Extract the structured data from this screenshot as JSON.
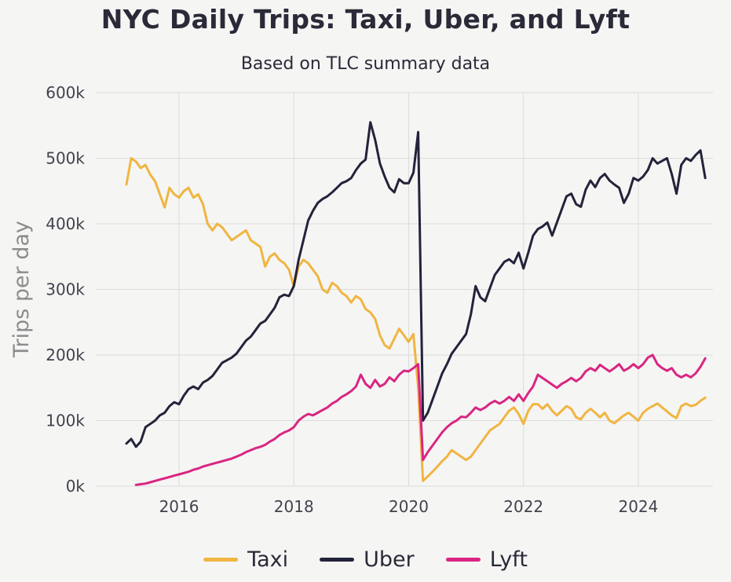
{
  "theme": {
    "bg": "#f5f5f4",
    "grid": "#dcdcdc",
    "tick": "#42424d",
    "text": "#2a2a38",
    "muted": "#8c8c8c"
  },
  "chart_data": {
    "type": "line",
    "title": "NYC Daily Trips: Taxi, Uber, and Lyft",
    "subtitle": "Based on TLC summary data",
    "ylabel": "Trips per day",
    "xlabel": "",
    "unit": "thousands of trips per day",
    "grid": true,
    "legend_position": "bottom",
    "xlim": [
      2014.55,
      2025.3
    ],
    "ylim": [
      0,
      600
    ],
    "x_ticks": [
      2016,
      2018,
      2020,
      2022,
      2024
    ],
    "y_ticks": [
      0,
      100,
      200,
      300,
      400,
      500,
      600
    ],
    "y_tick_suffix": "k",
    "x_start": 2015.083,
    "x_step": 0.08333,
    "series": [
      {
        "name": "Taxi",
        "color": "#f0b541",
        "values": [
          460,
          500,
          495,
          485,
          490,
          475,
          465,
          445,
          425,
          455,
          445,
          440,
          450,
          455,
          440,
          445,
          430,
          400,
          390,
          400,
          395,
          385,
          375,
          380,
          385,
          390,
          375,
          370,
          365,
          335,
          350,
          355,
          345,
          340,
          330,
          305,
          335,
          345,
          340,
          330,
          320,
          300,
          295,
          310,
          305,
          295,
          290,
          280,
          290,
          285,
          270,
          265,
          255,
          230,
          215,
          210,
          225,
          240,
          230,
          220,
          232,
          150,
          8,
          15,
          22,
          30,
          38,
          45,
          55,
          50,
          45,
          40,
          45,
          55,
          65,
          75,
          85,
          90,
          95,
          105,
          115,
          120,
          110,
          95,
          115,
          125,
          125,
          118,
          125,
          115,
          108,
          115,
          122,
          118,
          105,
          102,
          112,
          118,
          112,
          105,
          112,
          100,
          96,
          102,
          108,
          112,
          106,
          100,
          112,
          118,
          122,
          126,
          120,
          114,
          108,
          104,
          122,
          126,
          122,
          124,
          130,
          135
        ]
      },
      {
        "name": "Uber",
        "color": "#23233a",
        "values": [
          65,
          72,
          60,
          68,
          90,
          95,
          100,
          108,
          112,
          122,
          128,
          125,
          138,
          148,
          152,
          148,
          158,
          162,
          168,
          178,
          188,
          192,
          196,
          202,
          212,
          222,
          228,
          238,
          248,
          252,
          262,
          272,
          288,
          292,
          290,
          305,
          345,
          375,
          405,
          420,
          432,
          438,
          442,
          448,
          455,
          462,
          465,
          470,
          482,
          492,
          498,
          555,
          528,
          492,
          472,
          455,
          448,
          468,
          462,
          462,
          478,
          540,
          100,
          112,
          132,
          152,
          172,
          186,
          202,
          212,
          222,
          232,
          262,
          305,
          288,
          282,
          302,
          322,
          332,
          342,
          346,
          340,
          356,
          332,
          356,
          382,
          392,
          396,
          402,
          382,
          402,
          422,
          442,
          446,
          430,
          426,
          452,
          466,
          456,
          470,
          476,
          466,
          460,
          455,
          432,
          446,
          470,
          466,
          472,
          482,
          500,
          492,
          496,
          500,
          476,
          446,
          490,
          500,
          496,
          505,
          512,
          470
        ]
      },
      {
        "name": "Lyft",
        "color": "#d92682",
        "values": [
          null,
          null,
          2,
          3,
          4,
          6,
          8,
          10,
          12,
          14,
          16,
          18,
          20,
          22,
          25,
          27,
          30,
          32,
          34,
          36,
          38,
          40,
          42,
          45,
          48,
          52,
          55,
          58,
          60,
          63,
          68,
          72,
          78,
          82,
          85,
          90,
          100,
          106,
          110,
          108,
          112,
          116,
          120,
          126,
          130,
          136,
          140,
          145,
          152,
          170,
          156,
          150,
          162,
          152,
          156,
          166,
          160,
          170,
          176,
          175,
          180,
          186,
          40,
          52,
          62,
          72,
          82,
          90,
          96,
          100,
          106,
          105,
          112,
          120,
          116,
          120,
          126,
          130,
          126,
          130,
          136,
          130,
          140,
          130,
          142,
          152,
          170,
          165,
          160,
          155,
          150,
          156,
          160,
          165,
          160,
          165,
          175,
          180,
          176,
          185,
          180,
          175,
          180,
          186,
          176,
          180,
          186,
          180,
          186,
          196,
          200,
          186,
          180,
          176,
          180,
          170,
          166,
          170,
          166,
          172,
          182,
          195
        ]
      }
    ]
  }
}
